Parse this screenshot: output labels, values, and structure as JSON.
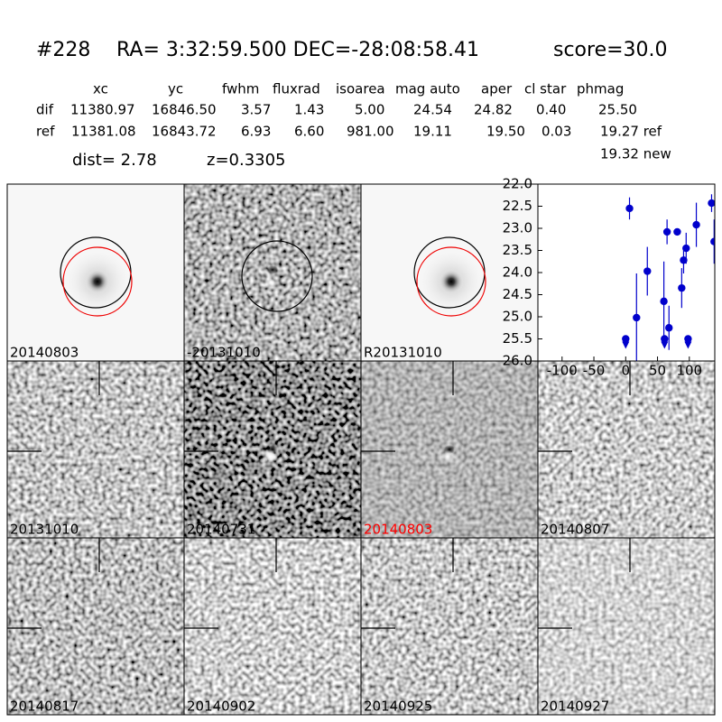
{
  "header": {
    "id": "#228",
    "coords": "RA= 3:32:59.500 DEC=-28:08:58.41",
    "score": "score=30.0"
  },
  "table": {
    "columns": [
      "xc",
      "yc",
      "fwhm",
      "fluxrad",
      "isoarea",
      "mag auto",
      "aper",
      "cl star",
      "phmag"
    ],
    "rows": [
      {
        "label": "dif",
        "cells": [
          "11380.97",
          "16846.50",
          "3.57",
          "1.43",
          "5.00",
          "24.54",
          "24.82",
          "0.40",
          "25.50"
        ]
      },
      {
        "label": "ref",
        "cells": [
          "11381.08",
          "16843.72",
          "6.93",
          "6.60",
          "981.00",
          "19.11",
          "19.50",
          "0.03",
          "19.27 ref"
        ]
      }
    ],
    "new_mag": "19.32 new"
  },
  "dist": "dist=  2.78",
  "redshift": "z=0.3305",
  "stamps": [
    {
      "label": "20140803"
    },
    {
      "label": "-20131010"
    },
    {
      "label": "R20131010"
    },
    {
      "label": "20131010"
    },
    {
      "label": "20140731"
    },
    {
      "label": "20140803",
      "label_color": "#ff0000"
    },
    {
      "label": "20140807"
    },
    {
      "label": "20140817"
    },
    {
      "label": "20140902"
    },
    {
      "label": "20140925"
    },
    {
      "label": "20140927"
    }
  ],
  "chart_data": {
    "type": "scatter",
    "xlim": [
      -138,
      140
    ],
    "ylim": [
      26.0,
      22.0
    ],
    "xticks": [
      -100,
      -50,
      0,
      50,
      100
    ],
    "yticks": [
      {
        "value": 22.0,
        "label": "22.0"
      },
      {
        "value": 22.5,
        "label": "22.5"
      },
      {
        "value": 23.0,
        "label": "23.0"
      },
      {
        "value": 23.5,
        "label": "23.5"
      },
      {
        "value": 24.0,
        "label": "24.0"
      },
      {
        "value": 24.5,
        "label": "24.5"
      },
      {
        "value": 25.0,
        "label": "25.0"
      },
      {
        "value": 25.5,
        "label": "25.5"
      },
      {
        "value": 26.0,
        "label": "26.0"
      }
    ],
    "series": [
      {
        "color": "#0000cc",
        "x": [
          6,
          17,
          34,
          60,
          65,
          68,
          81,
          88,
          91,
          95,
          111,
          135,
          139
        ],
        "values": [
          22.55,
          25.02,
          23.97,
          24.65,
          23.08,
          25.25,
          23.08,
          24.35,
          23.72,
          23.45,
          22.92,
          22.43,
          23.3
        ],
        "errors": [
          0.25,
          1.0,
          0.55,
          0.9,
          0.28,
          0.5,
          0.05,
          0.45,
          0.3,
          0.35,
          0.5,
          0.2,
          0.5
        ]
      },
      {
        "color": "#0000cc",
        "marker": "v",
        "x": [
          0,
          61,
          98
        ],
        "values": [
          25.5,
          25.5,
          25.5
        ]
      }
    ]
  }
}
